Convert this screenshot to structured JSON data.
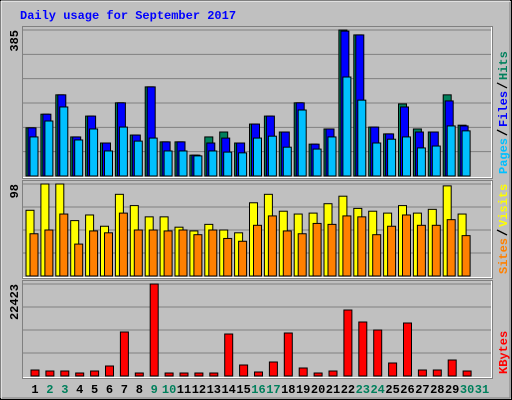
{
  "chart_data": [
    {
      "type": "bar",
      "title": "Daily usage for September 2017",
      "title_color": "#0000ff",
      "ylim": [
        0,
        385
      ],
      "yticks": [
        385
      ],
      "grid": true,
      "series": [
        {
          "name": "Hits",
          "color": "#00805c",
          "values": [
            127,
            163,
            214,
            103,
            158,
            87,
            193,
            108,
            235,
            90,
            90,
            55,
            103,
            116,
            87,
            137,
            158,
            116,
            193,
            84,
            124,
            385,
            372,
            129,
            111,
            190,
            124,
            116,
            214,
            134,
            null
          ]
        },
        {
          "name": "Files",
          "color": "#0000ff",
          "values": [
            127,
            163,
            214,
            103,
            158,
            87,
            193,
            108,
            235,
            90,
            90,
            55,
            87,
            100,
            87,
            137,
            158,
            116,
            193,
            84,
            124,
            382,
            372,
            129,
            111,
            182,
            116,
            116,
            198,
            132,
            null
          ]
        },
        {
          "name": "Pages",
          "color": "#00c0ff",
          "values": [
            103,
            145,
            182,
            95,
            124,
            66,
            129,
            92,
            100,
            66,
            66,
            53,
            66,
            63,
            61,
            100,
            105,
            76,
            174,
            71,
            103,
            261,
            200,
            87,
            97,
            103,
            74,
            79,
            132,
            119,
            null
          ]
        }
      ]
    },
    {
      "type": "bar",
      "ylim": [
        0,
        98
      ],
      "yticks": [
        98
      ],
      "grid": true,
      "series": [
        {
          "name": "Visits",
          "color": "#ffff00",
          "values": [
            70,
            98,
            98,
            59,
            65,
            53,
            87,
            75,
            63,
            63,
            52,
            48,
            55,
            49,
            46,
            78,
            87,
            69,
            66,
            67,
            77,
            85,
            72,
            69,
            67,
            75,
            67,
            71,
            96,
            66,
            null
          ]
        },
        {
          "name": "Sites",
          "color": "#ff8000",
          "values": [
            45,
            49,
            66,
            34,
            48,
            46,
            67,
            49,
            49,
            48,
            49,
            44,
            49,
            40,
            37,
            54,
            64,
            48,
            45,
            56,
            55,
            64,
            63,
            44,
            53,
            65,
            54,
            54,
            60,
            43,
            null
          ]
        }
      ]
    },
    {
      "type": "bar",
      "ylim": [
        0,
        22423
      ],
      "yticks": [
        22423
      ],
      "grid": true,
      "categories": [
        "1",
        "2",
        "3",
        "4",
        "5",
        "6",
        "7",
        "8",
        "9",
        "10",
        "11",
        "12",
        "13",
        "14",
        "15",
        "16",
        "17",
        "18",
        "19",
        "20",
        "21",
        "22",
        "23",
        "24",
        "25",
        "26",
        "27",
        "28",
        "29",
        "30",
        "31"
      ],
      "category_colors": [
        "#000000",
        "#00805c",
        "#00805c",
        "#000000",
        "#000000",
        "#000000",
        "#000000",
        "#000000",
        "#00805c",
        "#00805c",
        "#000000",
        "#000000",
        "#000000",
        "#000000",
        "#000000",
        "#00805c",
        "#00805c",
        "#000000",
        "#000000",
        "#000000",
        "#000000",
        "#000000",
        "#00805c",
        "#00805c",
        "#000000",
        "#000000",
        "#000000",
        "#000000",
        "#000000",
        "#00805c",
        "#00805c"
      ],
      "series": [
        {
          "name": "KBytes",
          "color": "#ff0000",
          "values": [
            1462,
            1219,
            1219,
            731,
            1219,
            2437,
            10723,
            731,
            22423,
            731,
            731,
            731,
            731,
            10235,
            2681,
            975,
            3412,
            10479,
            1950,
            731,
            1219,
            16084,
            13160,
            11210,
            3168,
            12916,
            1462,
            1462,
            3899,
            1219,
            null
          ]
        }
      ]
    }
  ]
}
